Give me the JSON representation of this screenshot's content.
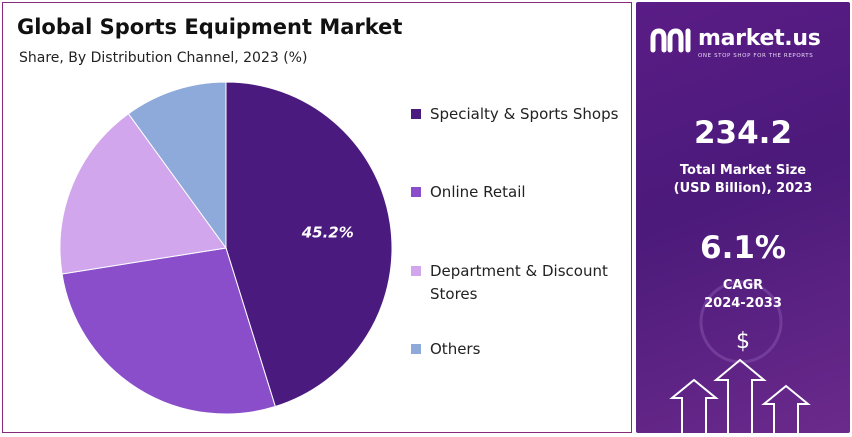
{
  "header": {
    "title": "Global Sports Equipment Market",
    "subtitle": "Share, By Distribution Channel, 2023 (%)"
  },
  "chart_data": {
    "type": "pie",
    "title": "Global Sports Equipment Market",
    "subtitle": "Share, By Distribution Channel, 2023 (%)",
    "categories": [
      "Specialty & Sports Shops",
      "Online Retail",
      "Department & Discount Stores",
      "Others"
    ],
    "values": [
      45.2,
      27.3,
      17.5,
      10.0
    ],
    "colors": [
      "#4b1a7f",
      "#8a4ecb",
      "#d2a6ec",
      "#8eaadb"
    ],
    "data_labels": [
      "45.2%",
      "",
      "",
      ""
    ],
    "legend_position": "right"
  },
  "legend": {
    "items": [
      {
        "label": "Specialty & Sports Shops",
        "color": "#4b1a7f"
      },
      {
        "label": "Online Retail",
        "color": "#8a4ecb"
      },
      {
        "label": "Department & Discount Stores",
        "color": "#d2a6ec"
      },
      {
        "label": "Others",
        "color": "#8eaadb"
      }
    ]
  },
  "sidebar": {
    "brand_name": "market.us",
    "brand_tagline": "ONE STOP SHOP FOR THE REPORTS",
    "market_size_value": "234.2",
    "market_size_label_line1": "Total Market Size",
    "market_size_label_line2": "(USD Billion), 2023",
    "cagr_value": "6.1%",
    "cagr_label_line1": "CAGR",
    "cagr_label_line2": "2024-2033",
    "currency_symbol": "$"
  }
}
